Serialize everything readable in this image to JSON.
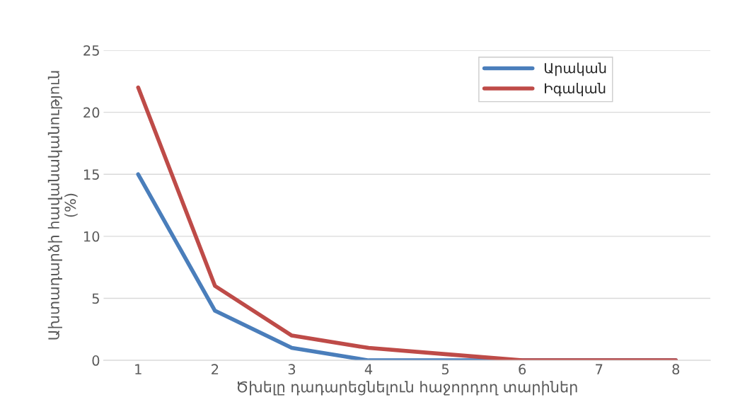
{
  "chart_data": {
    "type": "line",
    "xlabel": "Ծխելը դադարեցնելուն հաջորդող տարիներ",
    "ylabel": "Ախտադարձի հավանականություն\n(%)",
    "categories": [
      "1",
      "2",
      "3",
      "4",
      "5",
      "6",
      "7",
      "8"
    ],
    "series": [
      {
        "name": "Արական",
        "color": "#4a7ebb",
        "values": [
          15,
          4,
          1,
          0,
          0,
          0,
          0,
          0
        ]
      },
      {
        "name": "Իգական",
        "color": "#be4b48",
        "values": [
          22,
          6,
          2,
          1,
          0.5,
          0,
          0,
          0
        ]
      }
    ],
    "ylim": [
      0,
      25
    ],
    "yticks": [
      0,
      5,
      10,
      15,
      20,
      25
    ],
    "grid": "y",
    "legend": "top right",
    "marker": "none",
    "line_style": "solid"
  }
}
